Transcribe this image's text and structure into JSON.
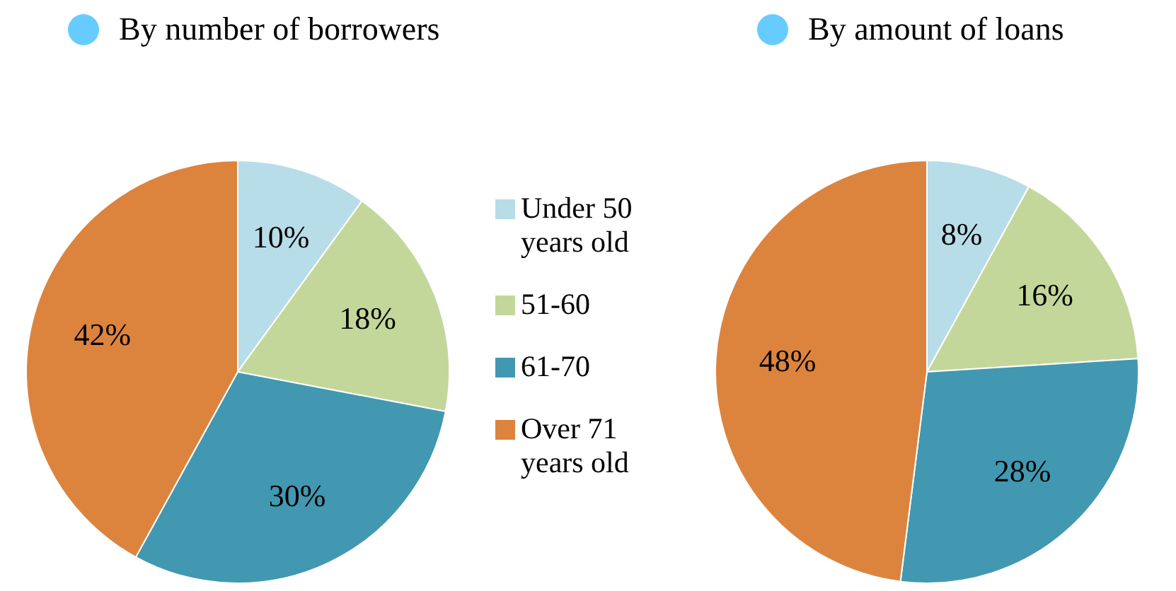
{
  "chart_data": [
    {
      "type": "pie",
      "title": "By number of borrowers",
      "categories": [
        "Under 50 years old",
        "51-60",
        "61-70",
        "Over 71 years old"
      ],
      "values": [
        10,
        18,
        30,
        42
      ],
      "colors": [
        "#b7dde8",
        "#c4d79b",
        "#4298b1",
        "#dc843e"
      ],
      "value_labels": [
        "10%",
        "18%",
        "30%",
        "42%"
      ],
      "legend": "right"
    },
    {
      "type": "pie",
      "title": "By amount of loans",
      "categories": [
        null,
        null,
        null,
        null
      ],
      "values": [
        8,
        16,
        28,
        48
      ],
      "colors": [
        "#b7dde8",
        "#c4d79b",
        "#4298b1",
        "#dc843e"
      ],
      "value_labels": [
        "8%",
        "16%",
        "28%",
        "48%"
      ]
    }
  ]
}
